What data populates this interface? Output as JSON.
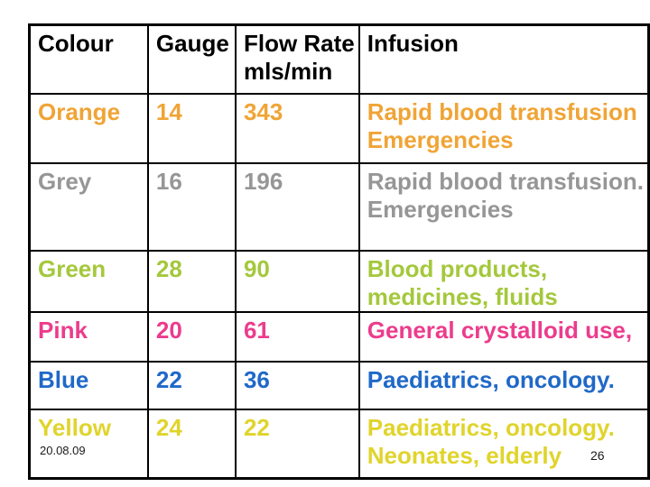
{
  "page": {
    "background_color": "#ffffff",
    "table_border_color": "#000000",
    "header_text_color": "#000000"
  },
  "table": {
    "header": {
      "colour": "Colour",
      "gauge": "Gauge",
      "flow_rate_line1": "Flow Rate",
      "flow_rate_line2": "mls/min",
      "infusion": "Infusion"
    },
    "rows": [
      {
        "colour": "Orange",
        "gauge": "14",
        "flow_rate": "343",
        "infusion_lines": [
          "Rapid blood transfusion",
          "Emergencies"
        ],
        "color": "#F0A435"
      },
      {
        "colour": "Grey",
        "gauge": "16",
        "flow_rate": "196",
        "infusion_lines": [
          "Rapid blood transfusion.",
          "Emergencies"
        ],
        "color": "#969696"
      },
      {
        "colour": "Green",
        "gauge": "28",
        "flow_rate": "90",
        "infusion_lines": [
          "Blood products,",
          "medicines, fluids"
        ],
        "color": "#A4C83C"
      },
      {
        "colour": "Pink",
        "gauge": "20",
        "flow_rate": "61",
        "infusion_lines": [
          "General crystalloid use,"
        ],
        "color": "#EC3C8C"
      },
      {
        "colour": "Blue",
        "gauge": "22",
        "flow_rate": "36",
        "infusion_lines": [
          "Paediatrics, oncology."
        ],
        "color": "#2069C8"
      },
      {
        "colour": "Yellow",
        "gauge": "24",
        "flow_rate": "22",
        "infusion_lines": [
          "Paediatrics, oncology.",
          "Neonates, elderly"
        ],
        "color": "#E0D42C"
      }
    ]
  },
  "footer": {
    "date": "20.08.09",
    "slide_number": "26"
  }
}
